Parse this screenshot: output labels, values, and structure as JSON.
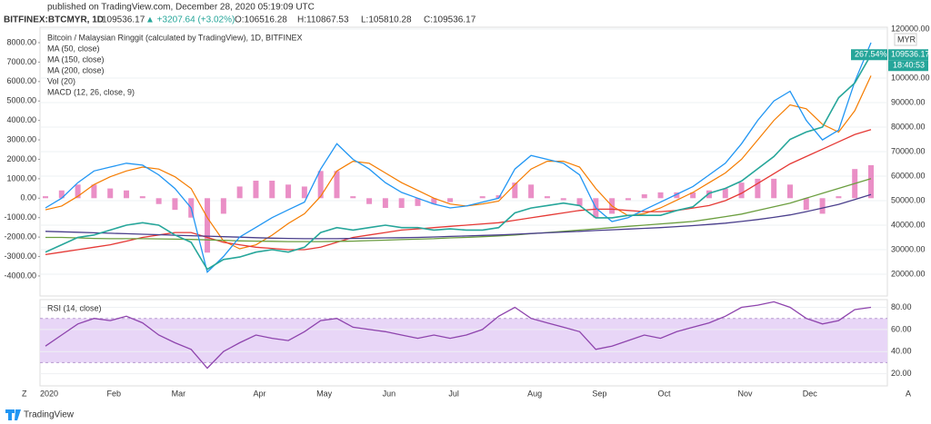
{
  "header": {
    "published": "published on TradingView.com, December 28, 2020 05:19:09 UTC",
    "symbol": "BITFINEX:BTCMYR, 1D",
    "last": "109536.17",
    "change": "▲ +3207.64 (+3.02%)",
    "open": "O:106516.28",
    "high": "H:110867.53",
    "low": "L:105810.28",
    "close": "C:109536.17"
  },
  "chart_data": [
    {
      "type": "line",
      "title": "Bitcoin / Malaysian Ringgit (calculated by TradingView), 1D, BITFINEX",
      "categories": [
        "2020",
        null,
        null,
        null,
        "Feb",
        null,
        null,
        null,
        "Mar",
        null,
        null,
        null,
        null,
        "Apr",
        null,
        null,
        null,
        "May",
        null,
        null,
        null,
        "Jun",
        null,
        null,
        null,
        "Jul",
        null,
        null,
        null,
        null,
        "Aug",
        null,
        null,
        null,
        "Sep",
        null,
        null,
        null,
        "Oct",
        null,
        null,
        null,
        null,
        "Nov",
        null,
        null,
        null,
        "Dec",
        null,
        null,
        null,
        null
      ],
      "values": [
        29000,
        32000,
        35000,
        36000,
        38000,
        40000,
        41000,
        40000,
        36000,
        33000,
        22000,
        26000,
        27000,
        29000,
        30000,
        29000,
        31000,
        37000,
        39000,
        38000,
        39000,
        40000,
        39000,
        39000,
        38000,
        38500,
        38000,
        38000,
        39000,
        45000,
        47000,
        48000,
        49000,
        48000,
        43000,
        43000,
        44000,
        44000,
        44000,
        46000,
        47500,
        53000,
        55000,
        58000,
        63000,
        68000,
        75000,
        78000,
        80000,
        92000,
        98000,
        109536
      ],
      "color": "#26a69a",
      "series": [
        {
          "name": "MA (50, close)",
          "color": "#e53935",
          "values": [
            28000,
            29000,
            30000,
            31000,
            32000,
            33500,
            35000,
            36000,
            37000,
            37000,
            35000,
            33000,
            32000,
            31000,
            30500,
            30000,
            30000,
            31000,
            33000,
            35000,
            36000,
            37000,
            38000,
            38500,
            39000,
            39500,
            40000,
            40500,
            41000,
            42000,
            43000,
            44000,
            45000,
            46000,
            46500,
            46500,
            46000,
            45500,
            45500,
            46000,
            47000,
            48000,
            50000,
            53000,
            57000,
            61000,
            65000,
            68000,
            71000,
            74000,
            77000,
            79000
          ]
        },
        {
          "name": "MA (150, close)",
          "color": "#6b9e3f",
          "values": [
            35000,
            35000,
            34800,
            34600,
            34500,
            34500,
            34500,
            34400,
            34300,
            34200,
            34000,
            33800,
            33600,
            33500,
            33400,
            33300,
            33300,
            33300,
            33400,
            33500,
            33700,
            33900,
            34100,
            34300,
            34500,
            34800,
            35000,
            35300,
            35600,
            36000,
            36500,
            37000,
            37500,
            38000,
            38500,
            39000,
            39500,
            40000,
            40500,
            41000,
            41500,
            42500,
            43500,
            44500,
            46000,
            47500,
            49000,
            51000,
            53000,
            55000,
            57000,
            59000
          ]
        },
        {
          "name": "MA (200, close)",
          "color": "#4a3f8c",
          "values": [
            37500,
            37300,
            37100,
            36900,
            36700,
            36500,
            36300,
            36100,
            35900,
            35700,
            35500,
            35300,
            35100,
            34900,
            34700,
            34600,
            34500,
            34500,
            34500,
            34600,
            34700,
            34800,
            34900,
            35000,
            35200,
            35400,
            35600,
            35800,
            36000,
            36300,
            36600,
            36900,
            37200,
            37500,
            37800,
            38100,
            38400,
            38700,
            39000,
            39400,
            39800,
            40300,
            40800,
            41500,
            42300,
            43200,
            44200,
            45500,
            47000,
            48500,
            50500,
            52500
          ]
        },
        {
          "name": "MACD (12, 26, close, 9)",
          "color": "#2196f3",
          "axis": "y2",
          "values": [
            -500,
            0,
            800,
            1400,
            1600,
            1800,
            1700,
            1200,
            500,
            -500,
            -3800,
            -3000,
            -2000,
            -1500,
            -1000,
            -600,
            -200,
            1500,
            2800,
            2000,
            1500,
            800,
            300,
            0,
            -300,
            -500,
            -400,
            -200,
            0,
            1500,
            2200,
            2000,
            1800,
            1200,
            -500,
            -1200,
            -1000,
            -600,
            -200,
            200,
            600,
            1200,
            1800,
            2800,
            4000,
            5000,
            5500,
            4000,
            3000,
            3500,
            6000,
            8000
          ]
        }
      ],
      "macd_signal": [
        -600,
        -400,
        100,
        700,
        1100,
        1400,
        1600,
        1500,
        1100,
        500,
        -1000,
        -2200,
        -2600,
        -2400,
        -1900,
        -1300,
        -800,
        100,
        1400,
        1900,
        1800,
        1300,
        800,
        400,
        0,
        -300,
        -400,
        -300,
        -150,
        700,
        1500,
        1900,
        1900,
        1600,
        500,
        -400,
        -900,
        -800,
        -500,
        -100,
        300,
        800,
        1300,
        2000,
        3000,
        4000,
        4800,
        4600,
        3800,
        3400,
        4500,
        6300
      ],
      "macd_signal_color": "#f57c00",
      "macd_histogram": [
        100,
        400,
        700,
        700,
        500,
        400,
        100,
        -300,
        -600,
        -1000,
        -2800,
        -800,
        600,
        900,
        900,
        700,
        600,
        1400,
        1400,
        100,
        -300,
        -500,
        -500,
        -400,
        -300,
        -200,
        0,
        100,
        150,
        800,
        700,
        100,
        -100,
        -400,
        -1000,
        -800,
        -100,
        200,
        300,
        300,
        300,
        400,
        500,
        800,
        1000,
        1000,
        700,
        -600,
        -800,
        100,
        1500,
        1700
      ],
      "macd_histogram_color": "#e573b8",
      "volume_label": "Vol (20)",
      "ylim": [
        10000,
        120000
      ],
      "yticks": [
        {
          "value": 20000,
          "label": "20000.00"
        },
        {
          "value": 30000,
          "label": "30000.00"
        },
        {
          "value": 40000,
          "label": "40000.00"
        },
        {
          "value": 50000,
          "label": "50000.00"
        },
        {
          "value": 60000,
          "label": "60000.00"
        },
        {
          "value": 70000,
          "label": "70000.00"
        },
        {
          "value": 80000,
          "label": "80000.00"
        },
        {
          "value": 90000,
          "label": "90000.00"
        },
        {
          "value": 100000,
          "label": "100000.00"
        },
        {
          "value": 120000,
          "label": "120000.00"
        }
      ],
      "y2lim": [
        -5170,
        8700
      ],
      "y2ticks": [
        {
          "value": -4000,
          "label": "-4000.00"
        },
        {
          "value": -3000,
          "label": "-3000.00"
        },
        {
          "value": -2000,
          "label": "-2000.00"
        },
        {
          "value": -1000,
          "label": "-1000.00"
        },
        {
          "value": 0,
          "label": "0.00"
        },
        {
          "value": 1000,
          "label": "1000.00"
        },
        {
          "value": 2000,
          "label": "2000.00"
        },
        {
          "value": 3000,
          "label": "3000.00"
        },
        {
          "value": 4000,
          "label": "4000.00"
        },
        {
          "value": 5000,
          "label": "5000.00"
        },
        {
          "value": 6000,
          "label": "6000.00"
        },
        {
          "value": 7000,
          "label": "7000.00"
        },
        {
          "value": 8000,
          "label": "8000.00"
        }
      ],
      "change_label": "267.54%",
      "last_price_label": "109536.17",
      "countdown": "18:40:53",
      "currency": "MYR",
      "grid": true
    },
    {
      "type": "line",
      "title": "RSI (14, close)",
      "series": [
        {
          "name": "RSI (14, close)",
          "color": "#8e44ad",
          "values": [
            45,
            55,
            65,
            70,
            68,
            72,
            66,
            55,
            48,
            42,
            25,
            40,
            48,
            55,
            52,
            50,
            58,
            68,
            70,
            62,
            60,
            58,
            55,
            52,
            55,
            52,
            55,
            60,
            72,
            80,
            70,
            66,
            62,
            58,
            42,
            45,
            50,
            55,
            52,
            58,
            62,
            66,
            72,
            80,
            82,
            85,
            80,
            70,
            65,
            68,
            78,
            80
          ]
        }
      ],
      "band": [
        30,
        70
      ],
      "band_color": "#e8d6f7",
      "ylim": [
        9,
        87
      ],
      "yticks": [
        {
          "value": 20,
          "label": "20.00"
        },
        {
          "value": 40,
          "label": "40.00"
        },
        {
          "value": 60,
          "label": "60.00"
        },
        {
          "value": 80,
          "label": "80.00"
        }
      ],
      "grid": true
    }
  ],
  "footer": {
    "brand": "TradingView"
  }
}
